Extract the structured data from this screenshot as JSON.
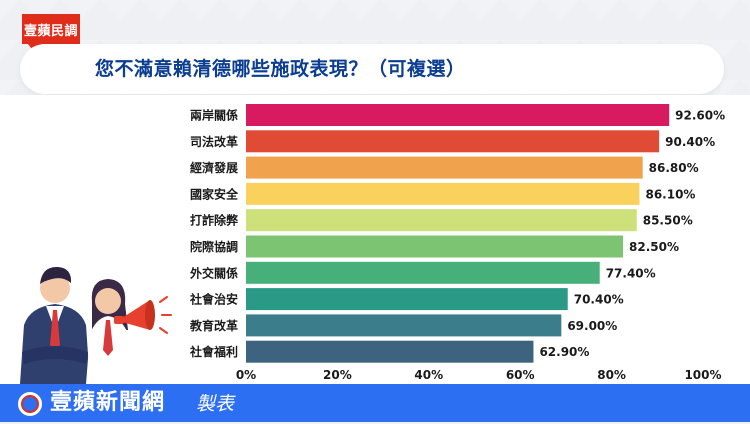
{
  "header": {
    "tag_label": "壹蘋民調",
    "title": "您不滿意賴清德哪些施政表現？（可複選）"
  },
  "footer": {
    "brand": "壹蘋新聞網",
    "suffix": "製表"
  },
  "colors": {
    "tag": "#e02d1b",
    "title": "#0b3d91",
    "footer": "#2d6ff3"
  },
  "chart_data": {
    "type": "bar",
    "orientation": "horizontal",
    "categories": [
      "兩岸關係",
      "司法改革",
      "經濟發展",
      "國家安全",
      "打詐除弊",
      "院際協調",
      "外交關係",
      "社會治安",
      "教育改革",
      "社會福利"
    ],
    "values": [
      92.6,
      90.4,
      86.8,
      86.1,
      85.5,
      82.5,
      77.4,
      70.4,
      69.0,
      62.9
    ],
    "value_labels": [
      "92.60%",
      "90.40%",
      "86.80%",
      "86.10%",
      "85.50%",
      "82.50%",
      "77.40%",
      "70.40%",
      "69.00%",
      "62.90%"
    ],
    "bar_colors": [
      "#d81b60",
      "#e04b36",
      "#f0a24d",
      "#fbd15e",
      "#cde07a",
      "#7cc472",
      "#47b07a",
      "#2a9a86",
      "#3b7d8a",
      "#3e6380"
    ],
    "xticks": [
      "0%",
      "20%",
      "40%",
      "60%",
      "80%",
      "100%"
    ],
    "xlim": [
      0,
      100
    ],
    "grid": false,
    "legend": "none",
    "title": "您不滿意賴清德哪些施政表現？（可複選）"
  }
}
